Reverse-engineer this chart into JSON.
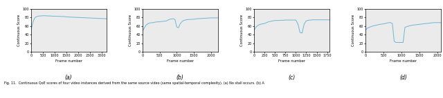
{
  "fig_width": 6.4,
  "fig_height": 1.42,
  "dpi": 100,
  "line_color": "#6eb5d4",
  "line_width": 0.7,
  "bg_color": "#ebebeb",
  "ylabel": "Continuous Score",
  "xlabel": "Frame number",
  "ylim": [
    0,
    100
  ],
  "yticks": [
    0,
    20,
    40,
    60,
    80,
    100
  ],
  "caption": "Fig. 11.  Continuous QoE scores of four video instances derived from the same source video (same spatial-temporal complexity). (a) No stall occurs. (b) A",
  "subplots": [
    {
      "label": "(a)",
      "xlim": [
        0,
        3200
      ],
      "xticks": [
        0,
        500,
        1000,
        1500,
        2000,
        2500,
        3000
      ],
      "curve": {
        "x": [
          0,
          50,
          100,
          150,
          200,
          250,
          300,
          400,
          500,
          600,
          700,
          800,
          900,
          1000,
          1200,
          1400,
          1600,
          1800,
          2000,
          2200,
          2400,
          2600,
          2800,
          3000,
          3200
        ],
        "y": [
          50,
          62,
          72,
          78,
          81,
          82,
          83,
          83.5,
          84,
          84,
          83.5,
          83.5,
          83,
          83,
          82.5,
          82,
          81,
          80.5,
          80,
          79.5,
          79,
          78.5,
          78,
          77.5,
          77
        ]
      }
    },
    {
      "label": "(b)",
      "xlim": [
        0,
        2200
      ],
      "xticks": [
        0,
        500,
        1000,
        1500,
        2000
      ],
      "curve": {
        "x": [
          0,
          50,
          100,
          150,
          200,
          300,
          400,
          500,
          600,
          700,
          800,
          900,
          950,
          1000,
          1050,
          1100,
          1150,
          1200,
          1250,
          1300,
          1400,
          1500,
          1600,
          1700,
          1800,
          1900,
          2000,
          2100,
          2200
        ],
        "y": [
          48,
          55,
          62,
          65,
          67,
          68,
          69.5,
          70,
          71,
          72,
          76,
          77,
          75,
          58,
          56,
          65,
          70,
          73,
          74,
          75,
          75.5,
          76,
          77,
          77.5,
          78,
          78.5,
          79,
          79,
          79
        ]
      }
    },
    {
      "label": "(c)",
      "xlim": [
        0,
        1800
      ],
      "xticks": [
        0,
        250,
        500,
        750,
        1000,
        1250,
        1500,
        1750
      ],
      "curve": {
        "x": [
          0,
          50,
          100,
          150,
          200,
          250,
          300,
          350,
          400,
          450,
          500,
          550,
          600,
          650,
          700,
          750,
          900,
          1000,
          1050,
          1100,
          1150,
          1200,
          1250,
          1300,
          1350,
          1400,
          1500,
          1600,
          1700,
          1800
        ],
        "y": [
          50,
          58,
          62,
          64,
          65,
          66,
          68,
          70,
          71,
          72,
          73,
          73,
          73,
          73.5,
          73.5,
          74,
          74,
          74,
          65,
          45,
          44,
          65,
          72,
          73.5,
          74,
          74.5,
          74.5,
          74.5,
          74.5,
          74.5
        ]
      }
    },
    {
      "label": "(d)",
      "xlim": [
        0,
        2100
      ],
      "xticks": [
        0,
        500,
        1000,
        1500,
        2000
      ],
      "curve": {
        "x": [
          0,
          50,
          100,
          200,
          300,
          400,
          500,
          550,
          600,
          650,
          700,
          750,
          800,
          850,
          900,
          950,
          1000,
          1050,
          1100,
          1200,
          1300,
          1400,
          1500,
          1600,
          1700,
          1800,
          1900,
          2000,
          2100
        ],
        "y": [
          50,
          55,
          57,
          60,
          62,
          64,
          65,
          66,
          67,
          68,
          68,
          66,
          25,
          22,
          22,
          22,
          22,
          22,
          57,
          60,
          62,
          63,
          64,
          65,
          66,
          67,
          68,
          68,
          68
        ]
      }
    }
  ]
}
